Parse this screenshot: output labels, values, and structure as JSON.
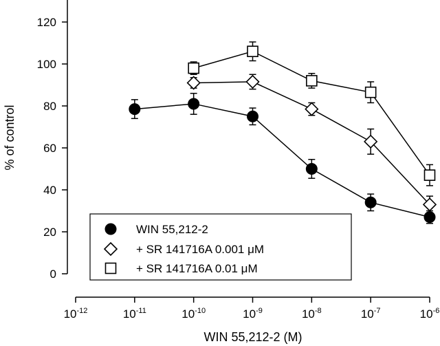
{
  "chart_data": {
    "type": "line",
    "xlabel": "WIN 55,212-2 (M)",
    "ylabel": "% of control",
    "x_scale": "log",
    "x_ticks": [
      1e-12,
      1e-11,
      1e-10,
      1e-09,
      1e-08,
      1e-07,
      1e-06
    ],
    "x_tick_labels": [
      {
        "base": "10",
        "exp": "-12"
      },
      {
        "base": "10",
        "exp": "-11"
      },
      {
        "base": "10",
        "exp": "-10"
      },
      {
        "base": "10",
        "exp": "-9"
      },
      {
        "base": "10",
        "exp": "-8"
      },
      {
        "base": "10",
        "exp": "-7"
      },
      {
        "base": "10",
        "exp": "-6"
      }
    ],
    "y_ticks": [
      0,
      20,
      40,
      60,
      80,
      100,
      120
    ],
    "ylim": [
      0,
      130
    ],
    "grid": false,
    "legend_position": "bottom-center",
    "series": [
      {
        "name": "WIN 55,212-2",
        "marker": "filled-circle",
        "x": [
          1e-11,
          1e-10,
          1e-09,
          1e-08,
          1e-07,
          1e-06
        ],
        "y": [
          78.5,
          81,
          75,
          50,
          34,
          27
        ],
        "err": [
          4.5,
          5,
          4,
          4.5,
          4,
          3
        ]
      },
      {
        "name": "+ SR 141716A 0.001 μM",
        "marker": "open-diamond",
        "x": [
          1e-10,
          1e-09,
          1e-08,
          1e-07,
          1e-06
        ],
        "y": [
          91,
          91.5,
          78.5,
          63,
          33
        ],
        "err": [
          2.5,
          3.5,
          3,
          6,
          4
        ]
      },
      {
        "name": "+ SR 141716A 0.01 μM",
        "marker": "open-square",
        "x": [
          1e-10,
          1e-09,
          1e-08,
          1e-07,
          1e-06
        ],
        "y": [
          98,
          106,
          92,
          86.5,
          47
        ],
        "err": [
          3,
          4.5,
          3.5,
          5,
          5
        ]
      }
    ]
  }
}
